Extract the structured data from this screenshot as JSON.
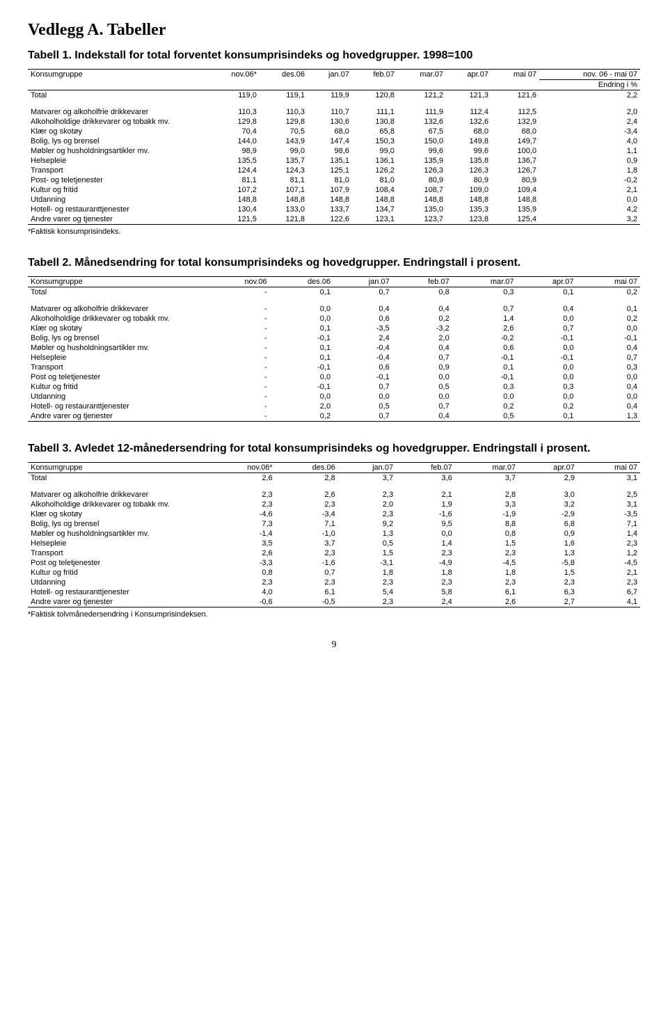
{
  "page_title": "Vedlegg A. Tabeller",
  "page_number": "9",
  "t1": {
    "title": "Tabell 1. Indekstall for total forventet konsumprisindeks og hovedgrupper. 1998=100",
    "col_hdr_left": "Konsumgruppe",
    "cols": [
      "nov.06*",
      "des.06",
      "jan.07",
      "feb.07",
      "mar.07",
      "apr.07",
      "mai 07",
      "nov. 06 - mai 07"
    ],
    "sub_right": "Endring i %",
    "rows": [
      {
        "l": "Total",
        "v": [
          "119,0",
          "119,1",
          "119,9",
          "120,8",
          "121,2",
          "121,3",
          "121,6",
          "2,2"
        ]
      },
      {
        "l": "Matvarer og alkoholfrie drikkevarer",
        "v": [
          "110,3",
          "110,3",
          "110,7",
          "111,1",
          "111,9",
          "112,4",
          "112,5",
          "2,0"
        ]
      },
      {
        "l": "Alkoholholdige drikkevarer og tobakk mv.",
        "v": [
          "129,8",
          "129,8",
          "130,6",
          "130,8",
          "132,6",
          "132,6",
          "132,9",
          "2,4"
        ]
      },
      {
        "l": "Klær og skotøy",
        "v": [
          "70,4",
          "70,5",
          "68,0",
          "65,8",
          "67,5",
          "68,0",
          "68,0",
          "-3,4"
        ]
      },
      {
        "l": "Bolig, lys og brensel",
        "v": [
          "144,0",
          "143,9",
          "147,4",
          "150,3",
          "150,0",
          "149,8",
          "149,7",
          "4,0"
        ]
      },
      {
        "l": "Møbler og husholdningsartikler mv.",
        "v": [
          "98,9",
          "99,0",
          "98,6",
          "99,0",
          "99,6",
          "99,6",
          "100,0",
          "1,1"
        ]
      },
      {
        "l": "Helsepleie",
        "v": [
          "135,5",
          "135,7",
          "135,1",
          "136,1",
          "135,9",
          "135,8",
          "136,7",
          "0,9"
        ]
      },
      {
        "l": "Transport",
        "v": [
          "124,4",
          "124,3",
          "125,1",
          "126,2",
          "126,3",
          "126,3",
          "126,7",
          "1,8"
        ]
      },
      {
        "l": "Post- og teletjenester",
        "v": [
          "81,1",
          "81,1",
          "81,0",
          "81,0",
          "80,9",
          "80,9",
          "80,9",
          "-0,2"
        ]
      },
      {
        "l": "Kultur og fritid",
        "v": [
          "107,2",
          "107,1",
          "107,9",
          "108,4",
          "108,7",
          "109,0",
          "109,4",
          "2,1"
        ]
      },
      {
        "l": "Utdanning",
        "v": [
          "148,8",
          "148,8",
          "148,8",
          "148,8",
          "148,8",
          "148,8",
          "148,8",
          "0,0"
        ]
      },
      {
        "l": "Hotell- og restauranttjenester",
        "v": [
          "130,4",
          "133,0",
          "133,7",
          "134,7",
          "135,0",
          "135,3",
          "135,9",
          "4,2"
        ]
      },
      {
        "l": "Andre varer og tjenester",
        "v": [
          "121,5",
          "121,8",
          "122,6",
          "123,1",
          "123,7",
          "123,8",
          "125,4",
          "3,2"
        ]
      }
    ],
    "footnote": "*Faktisk konsumprisindeks."
  },
  "t2": {
    "title": "Tabell 2. Månedsendring for total konsumprisindeks og hovedgrupper. Endringstall i prosent.",
    "col_hdr_left": "Konsumgruppe",
    "cols": [
      "nov.06",
      "des.06",
      "jan.07",
      "feb.07",
      "mar.07",
      "apr.07",
      "mai 07"
    ],
    "rows": [
      {
        "l": "Total",
        "v": [
          "-",
          "0,1",
          "0,7",
          "0,8",
          "0,3",
          "0,1",
          "0,2"
        ]
      },
      {
        "l": "Matvarer og alkoholfrie drikkevarer",
        "v": [
          "-",
          "0,0",
          "0,4",
          "0,4",
          "0,7",
          "0,4",
          "0,1"
        ]
      },
      {
        "l": "Alkoholholdige drikkevarer og tobakk mv.",
        "v": [
          "-",
          "0,0",
          "0,6",
          "0,2",
          "1,4",
          "0,0",
          "0,2"
        ]
      },
      {
        "l": "Klær og skotøy",
        "v": [
          "-",
          "0,1",
          "-3,5",
          "-3,2",
          "2,6",
          "0,7",
          "0,0"
        ]
      },
      {
        "l": "Bolig, lys og brensel",
        "v": [
          "-",
          "-0,1",
          "2,4",
          "2,0",
          "-0,2",
          "-0,1",
          "-0,1"
        ]
      },
      {
        "l": "Møbler og husholdningsartikler mv.",
        "v": [
          "-",
          "0,1",
          "-0,4",
          "0,4",
          "0,6",
          "0,0",
          "0,4"
        ]
      },
      {
        "l": "Helsepleie",
        "v": [
          "-",
          "0,1",
          "-0,4",
          "0,7",
          "-0,1",
          "-0,1",
          "0,7"
        ]
      },
      {
        "l": "Transport",
        "v": [
          "-",
          "-0,1",
          "0,6",
          "0,9",
          "0,1",
          "0,0",
          "0,3"
        ]
      },
      {
        "l": "Post og teletjenester",
        "v": [
          "-",
          "0,0",
          "-0,1",
          "0,0",
          "-0,1",
          "0,0",
          "0,0"
        ]
      },
      {
        "l": "Kultur og fritid",
        "v": [
          "-",
          "-0,1",
          "0,7",
          "0,5",
          "0,3",
          "0,3",
          "0,4"
        ]
      },
      {
        "l": "Utdanning",
        "v": [
          "-",
          "0,0",
          "0,0",
          "0,0",
          "0,0",
          "0,0",
          "0,0"
        ]
      },
      {
        "l": "Hotell- og restauranttjenester",
        "v": [
          "-",
          "2,0",
          "0,5",
          "0,7",
          "0,2",
          "0,2",
          "0,4"
        ]
      },
      {
        "l": "Andre varer og tjenester",
        "v": [
          "-",
          "0,2",
          "0,7",
          "0,4",
          "0,5",
          "0,1",
          "1,3"
        ]
      }
    ]
  },
  "t3": {
    "title": "Tabell 3. Avledet 12-månedersendring for total konsumprisindeks og hovedgrupper. Endringstall i prosent.",
    "col_hdr_left": "Konsumgruppe",
    "cols": [
      "nov.06*",
      "des.06",
      "jan.07",
      "feb.07",
      "mar.07",
      "apr.07",
      "mai 07"
    ],
    "rows": [
      {
        "l": "Total",
        "v": [
          "2,6",
          "2,8",
          "3,7",
          "3,6",
          "3,7",
          "2,9",
          "3,1"
        ]
      },
      {
        "l": "Matvarer og alkoholfrie drikkevarer",
        "v": [
          "2,3",
          "2,6",
          "2,3",
          "2,1",
          "2,8",
          "3,0",
          "2,5"
        ]
      },
      {
        "l": "Alkoholholdige drikkevarer og tobakk mv.",
        "v": [
          "2,3",
          "2,3",
          "2,0",
          "1,9",
          "3,3",
          "3,2",
          "3,1"
        ]
      },
      {
        "l": "Klær og skotøy",
        "v": [
          "-4,6",
          "-3,4",
          "2,3",
          "-1,6",
          "-1,9",
          "-2,9",
          "-3,5"
        ]
      },
      {
        "l": "Bolig, lys og brensel",
        "v": [
          "7,3",
          "7,1",
          "9,2",
          "9,5",
          "8,8",
          "6,8",
          "7,1"
        ]
      },
      {
        "l": "Møbler og husholdningsartikler mv.",
        "v": [
          "-1,4",
          "-1,0",
          "1,3",
          "0,0",
          "0,8",
          "0,9",
          "1,4"
        ]
      },
      {
        "l": "Helsepleie",
        "v": [
          "3,5",
          "3,7",
          "0,5",
          "1,4",
          "1,5",
          "1,6",
          "2,3"
        ]
      },
      {
        "l": "Transport",
        "v": [
          "2,6",
          "2,3",
          "1,5",
          "2,3",
          "2,3",
          "1,3",
          "1,2"
        ]
      },
      {
        "l": "Post og teletjenester",
        "v": [
          "-3,3",
          "-1,6",
          "-3,1",
          "-4,9",
          "-4,5",
          "-5,8",
          "-4,5"
        ]
      },
      {
        "l": "Kultur og fritid",
        "v": [
          "0,8",
          "0,7",
          "1,8",
          "1,8",
          "1,8",
          "1,5",
          "2,1"
        ]
      },
      {
        "l": "Utdanning",
        "v": [
          "2,3",
          "2,3",
          "2,3",
          "2,3",
          "2,3",
          "2,3",
          "2,3"
        ]
      },
      {
        "l": "Hotell- og restauranttjenester",
        "v": [
          "4,0",
          "6,1",
          "5,4",
          "5,8",
          "6,1",
          "6,3",
          "6,7"
        ]
      },
      {
        "l": "Andre varer og tjenester",
        "v": [
          "-0,6",
          "-0,5",
          "2,3",
          "2,4",
          "2,6",
          "2,7",
          "4,1"
        ]
      }
    ],
    "footnote": "*Faktisk tolvmånedersendring i Konsumprisindeksen."
  }
}
